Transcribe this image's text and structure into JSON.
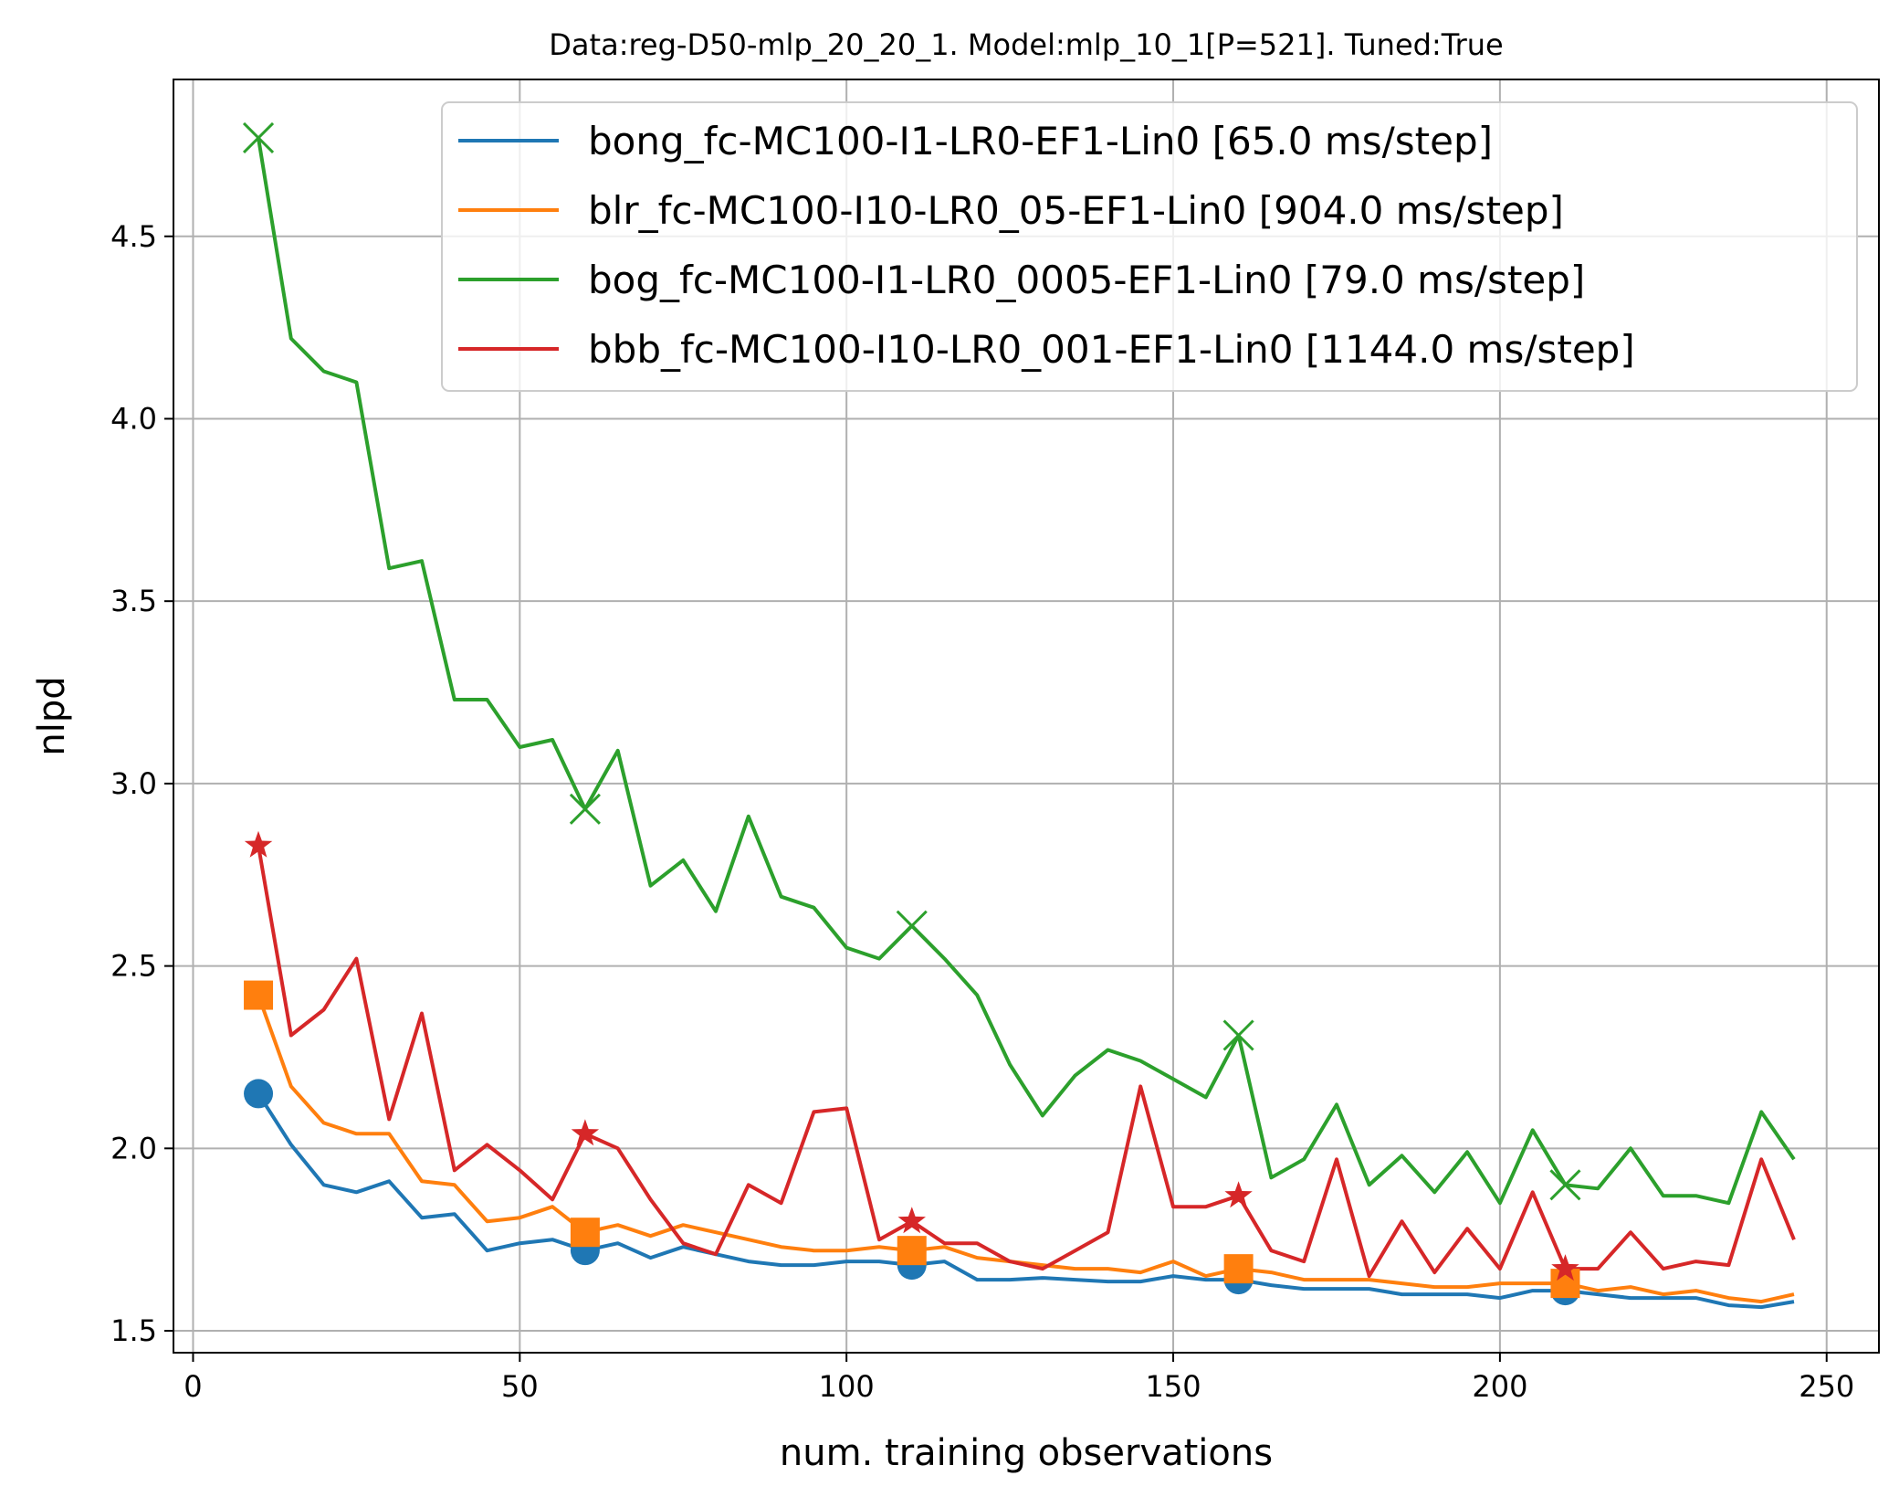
{
  "chart_data": {
    "type": "line",
    "title": "Data:reg-D50-mlp_20_20_1. Model:mlp_10_1[P=521]. Tuned:True",
    "xlabel": "num. training observations",
    "ylabel": "nlpd",
    "xlim": [
      -3,
      258
    ],
    "ylim": [
      1.44,
      4.93
    ],
    "xticks": [
      0,
      50,
      100,
      150,
      200,
      250
    ],
    "yticks": [
      1.5,
      2.0,
      2.5,
      3.0,
      3.5,
      4.0,
      4.5
    ],
    "grid": true,
    "legend_position": "top-right",
    "x": [
      10,
      15,
      20,
      25,
      30,
      35,
      40,
      45,
      50,
      55,
      60,
      65,
      70,
      75,
      80,
      85,
      90,
      95,
      100,
      105,
      110,
      115,
      120,
      125,
      130,
      135,
      140,
      145,
      150,
      155,
      160,
      165,
      170,
      175,
      180,
      185,
      190,
      195,
      200,
      205,
      210,
      215,
      220,
      225,
      230,
      235,
      240,
      245
    ],
    "marker_x": [
      10,
      60,
      110,
      160,
      210
    ],
    "series": [
      {
        "name": "bong_fc-MC100-I1-LR0-EF1-Lin0 [65.0 ms/step]",
        "color": "#1f77b4",
        "marker": "circle",
        "values": [
          2.15,
          2.01,
          1.9,
          1.88,
          1.91,
          1.81,
          1.82,
          1.72,
          1.74,
          1.75,
          1.72,
          1.74,
          1.7,
          1.73,
          1.71,
          1.69,
          1.68,
          1.68,
          1.69,
          1.69,
          1.68,
          1.69,
          1.64,
          1.64,
          1.645,
          1.64,
          1.635,
          1.635,
          1.65,
          1.64,
          1.64,
          1.625,
          1.615,
          1.615,
          1.615,
          1.6,
          1.6,
          1.6,
          1.59,
          1.61,
          1.61,
          1.6,
          1.59,
          1.59,
          1.59,
          1.57,
          1.565,
          1.58
        ]
      },
      {
        "name": "blr_fc-MC100-I10-LR0_05-EF1-Lin0 [904.0 ms/step]",
        "color": "#ff7f0e",
        "marker": "square",
        "values": [
          2.42,
          2.17,
          2.07,
          2.04,
          2.04,
          1.91,
          1.9,
          1.8,
          1.81,
          1.84,
          1.77,
          1.79,
          1.76,
          1.79,
          1.77,
          1.75,
          1.73,
          1.72,
          1.72,
          1.73,
          1.72,
          1.73,
          1.7,
          1.69,
          1.68,
          1.67,
          1.67,
          1.66,
          1.69,
          1.65,
          1.67,
          1.66,
          1.64,
          1.64,
          1.64,
          1.63,
          1.62,
          1.62,
          1.63,
          1.63,
          1.63,
          1.61,
          1.62,
          1.6,
          1.61,
          1.59,
          1.58,
          1.6
        ]
      },
      {
        "name": "bog_fc-MC100-I1-LR0_0005-EF1-Lin0 [79.0 ms/step]",
        "color": "#2ca02c",
        "marker": "x",
        "values": [
          4.77,
          4.22,
          4.13,
          4.1,
          3.59,
          3.61,
          3.23,
          3.23,
          3.1,
          3.12,
          2.93,
          3.09,
          2.72,
          2.79,
          2.65,
          2.91,
          2.69,
          2.66,
          2.55,
          2.52,
          2.61,
          2.52,
          2.42,
          2.23,
          2.09,
          2.2,
          2.27,
          2.24,
          2.19,
          2.14,
          2.31,
          1.92,
          1.97,
          2.12,
          1.9,
          1.98,
          1.88,
          1.99,
          1.85,
          2.05,
          1.9,
          1.89,
          2.0,
          1.87,
          1.87,
          1.85,
          2.1,
          1.97
        ]
      },
      {
        "name": "bbb_fc-MC100-I10-LR0_001-EF1-Lin0 [1144.0 ms/step]",
        "color": "#d62728",
        "marker": "star",
        "values": [
          2.83,
          2.31,
          2.38,
          2.52,
          2.08,
          2.37,
          1.94,
          2.01,
          1.94,
          1.86,
          2.04,
          2.0,
          1.86,
          1.74,
          1.71,
          1.9,
          1.85,
          2.1,
          2.11,
          1.75,
          1.8,
          1.74,
          1.74,
          1.69,
          1.67,
          1.72,
          1.77,
          2.17,
          1.84,
          1.84,
          1.87,
          1.72,
          1.69,
          1.97,
          1.65,
          1.8,
          1.66,
          1.78,
          1.67,
          1.88,
          1.67,
          1.67,
          1.77,
          1.67,
          1.69,
          1.68,
          1.97,
          1.75
        ]
      }
    ]
  }
}
